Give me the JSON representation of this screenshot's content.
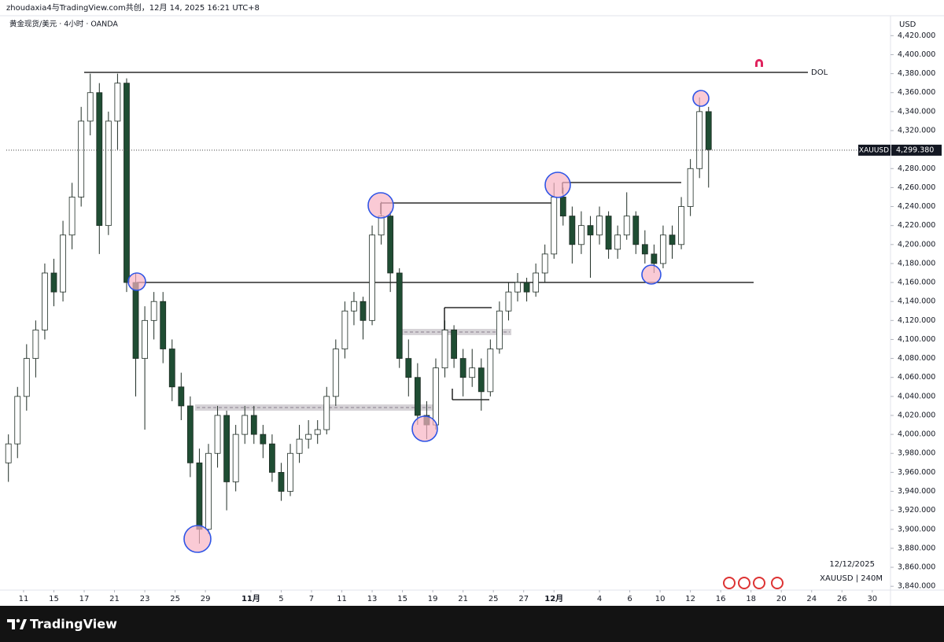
{
  "chart_data": {
    "type": "candlestick",
    "header": "zhoudaxia4与TradingView.com共创，12月 14, 2025 16:21 UTC+8",
    "title": "黄金现货/美元 · 4小时 · OANDA",
    "currency": "USD",
    "footer_brand": "TradingView",
    "date_stamp": "12/12/2025",
    "symbol_interval": "XAUUSD | 240M",
    "annotations": [
      "DOL"
    ],
    "up_color": "#ffffff",
    "down_color": "#1f4d33",
    "wick_color": "#1f2d25",
    "last_price": {
      "value": 4299.38,
      "label": "4,299.380"
    },
    "symbol_tag": "XAUUSD",
    "x": [
      -1,
      -0.4,
      0.2,
      0.8,
      1.4,
      2,
      2.6,
      3.2,
      3.8,
      4.4,
      5,
      5.6,
      6.2,
      6.8,
      7.4,
      8,
      8.6,
      9.2,
      9.8,
      10.4,
      11,
      11.6,
      12.2,
      12.8,
      13.4,
      14,
      14.6,
      15.2,
      15.8,
      16.4,
      17,
      17.6,
      18.2,
      18.8,
      19.4,
      20,
      20.6,
      21.2,
      21.8,
      22.4,
      23,
      23.6,
      24.2,
      24.8,
      25.4,
      26,
      26.6,
      27.2,
      27.8,
      28.4,
      29,
      29.6,
      30.2,
      30.8,
      31.4,
      32,
      32.6,
      33.2,
      33.8,
      34.4,
      35,
      35.6,
      36.2,
      36.8,
      37.4,
      38,
      38.6,
      39.2,
      39.8,
      40.4,
      41,
      41.6,
      42.2,
      42.8,
      43.4,
      44,
      44.6,
      45.2
    ],
    "open": [
      3970,
      3990,
      4040,
      4080,
      4110,
      4170,
      4150,
      4210,
      4250,
      4330,
      4360,
      4220,
      4330,
      4370,
      4160,
      4080,
      4120,
      4140,
      4090,
      4050,
      4030,
      3970,
      3900,
      3980,
      4020,
      3950,
      4000,
      4020,
      4000,
      3990,
      3960,
      3940,
      3980,
      3995,
      4000,
      4005,
      4040,
      4090,
      4130,
      4140,
      4120,
      4210,
      4230,
      4170,
      4080,
      4060,
      4020,
      4010,
      4070,
      4110,
      4080,
      4060,
      4070,
      4045,
      4090,
      4130,
      4150,
      4160,
      4150,
      4170,
      4190,
      4250,
      4230,
      4200,
      4220,
      4210,
      4230,
      4195,
      4210,
      4230,
      4200,
      4190,
      4180,
      4210,
      4200,
      4240,
      4280,
      4340
    ],
    "high": [
      4000,
      4050,
      4095,
      4120,
      4180,
      4185,
      4225,
      4265,
      4345,
      4380,
      4370,
      4340,
      4380,
      4375,
      4170,
      4135,
      4150,
      4150,
      4100,
      4065,
      4040,
      3985,
      3990,
      4030,
      4025,
      4010,
      4030,
      4030,
      4010,
      4000,
      3970,
      3990,
      4010,
      4015,
      4015,
      4050,
      4100,
      4140,
      4150,
      4145,
      4220,
      4245,
      4235,
      4175,
      4100,
      4075,
      4035,
      4080,
      4120,
      4115,
      4090,
      4090,
      4080,
      4100,
      4140,
      4160,
      4170,
      4165,
      4180,
      4200,
      4265,
      4260,
      4240,
      4235,
      4230,
      4240,
      4235,
      4220,
      4255,
      4235,
      4215,
      4200,
      4220,
      4220,
      4250,
      4290,
      4355,
      4345
    ],
    "low": [
      3950,
      3975,
      4025,
      4060,
      4100,
      4135,
      4140,
      4195,
      4240,
      4315,
      4190,
      4210,
      4300,
      4150,
      4040,
      4005,
      4100,
      4075,
      4035,
      4015,
      3955,
      3885,
      3895,
      3965,
      3920,
      3940,
      3990,
      3990,
      3975,
      3950,
      3930,
      3935,
      3970,
      3985,
      3990,
      4000,
      4030,
      4080,
      4115,
      4100,
      4115,
      4200,
      4150,
      4070,
      4040,
      4010,
      3995,
      4005,
      4060,
      4070,
      4040,
      4050,
      4025,
      4040,
      4085,
      4120,
      4140,
      4140,
      4145,
      4160,
      4185,
      4220,
      4180,
      4190,
      4165,
      4200,
      4185,
      4185,
      4205,
      4190,
      4180,
      4170,
      4175,
      4185,
      4195,
      4230,
      4270,
      4260
    ],
    "close": [
      3990,
      4040,
      4080,
      4110,
      4170,
      4150,
      4210,
      4250,
      4330,
      4360,
      4220,
      4330,
      4370,
      4160,
      4080,
      4120,
      4140,
      4090,
      4050,
      4030,
      3970,
      3900,
      3980,
      4020,
      3950,
      4000,
      4020,
      4000,
      3990,
      3960,
      3940,
      3980,
      3995,
      4000,
      4005,
      4040,
      4090,
      4130,
      4140,
      4120,
      4210,
      4230,
      4170,
      4080,
      4060,
      4020,
      4010,
      4070,
      4110,
      4080,
      4060,
      4070,
      4045,
      4090,
      4130,
      4150,
      4160,
      4150,
      4170,
      4190,
      4250,
      4230,
      4200,
      4220,
      4210,
      4230,
      4195,
      4210,
      4230,
      4200,
      4190,
      4180,
      4210,
      4200,
      4240,
      4280,
      4340,
      4300
    ],
    "xlim": [
      -1.14,
      57.1
    ],
    "xticks": [
      {
        "value": 0,
        "label": "11"
      },
      {
        "value": 2,
        "label": "15"
      },
      {
        "value": 4,
        "label": "17"
      },
      {
        "value": 6,
        "label": "21"
      },
      {
        "value": 8,
        "label": "23"
      },
      {
        "value": 10,
        "label": "25"
      },
      {
        "value": 12,
        "label": "29"
      },
      {
        "value": 15,
        "label": "11月"
      },
      {
        "value": 17,
        "label": "5"
      },
      {
        "value": 19,
        "label": "7"
      },
      {
        "value": 21,
        "label": "11"
      },
      {
        "value": 23,
        "label": "13"
      },
      {
        "value": 25,
        "label": "15"
      },
      {
        "value": 27,
        "label": "19"
      },
      {
        "value": 29,
        "label": "21"
      },
      {
        "value": 31,
        "label": "25"
      },
      {
        "value": 33,
        "label": "27"
      },
      {
        "value": 35,
        "label": "12月"
      },
      {
        "value": 38,
        "label": "4"
      },
      {
        "value": 40,
        "label": "6"
      },
      {
        "value": 42,
        "label": "10"
      },
      {
        "value": 44,
        "label": "12"
      },
      {
        "value": 46,
        "label": "16"
      },
      {
        "value": 48,
        "label": "18"
      },
      {
        "value": 50,
        "label": "20"
      },
      {
        "value": 52,
        "label": "24"
      },
      {
        "value": 54,
        "label": "26"
      },
      {
        "value": 56,
        "label": "30"
      }
    ],
    "ylim": [
      3836,
      4441
    ],
    "yticks": [
      {
        "value": 4420,
        "label": "4,420.000"
      },
      {
        "value": 4400,
        "label": "4,400.000"
      },
      {
        "value": 4380,
        "label": "4,380.000"
      },
      {
        "value": 4360,
        "label": "4,360.000"
      },
      {
        "value": 4340,
        "label": "4,340.000"
      },
      {
        "value": 4320,
        "label": "4,320.000"
      },
      {
        "value": 4300,
        "label": "4,300.000"
      },
      {
        "value": 4280,
        "label": "4,280.000"
      },
      {
        "value": 4260,
        "label": "4,260.000"
      },
      {
        "value": 4240,
        "label": "4,240.000"
      },
      {
        "value": 4220,
        "label": "4,220.000"
      },
      {
        "value": 4200,
        "label": "4,200.000"
      },
      {
        "value": 4180,
        "label": "4,180.000"
      },
      {
        "value": 4160,
        "label": "4,160.000"
      },
      {
        "value": 4140,
        "label": "4,140.000"
      },
      {
        "value": 4120,
        "label": "4,120.000"
      },
      {
        "value": 4100,
        "label": "4,100.000"
      },
      {
        "value": 4080,
        "label": "4,080.000"
      },
      {
        "value": 4060,
        "label": "4,060.000"
      },
      {
        "value": 4040,
        "label": "4,040.000"
      },
      {
        "value": 4020,
        "label": "4,020.000"
      },
      {
        "value": 4000,
        "label": "4,000.000"
      },
      {
        "value": 3980,
        "label": "3,980.000"
      },
      {
        "value": 3960,
        "label": "3,960.000"
      },
      {
        "value": 3940,
        "label": "3,940.000"
      },
      {
        "value": 3920,
        "label": "3,920.000"
      },
      {
        "value": 3900,
        "label": "3,900.000"
      },
      {
        "value": 3880,
        "label": "3,880.000"
      },
      {
        "value": 3860,
        "label": "3,860.000"
      },
      {
        "value": 3840,
        "label": "3,840.000"
      }
    ]
  }
}
